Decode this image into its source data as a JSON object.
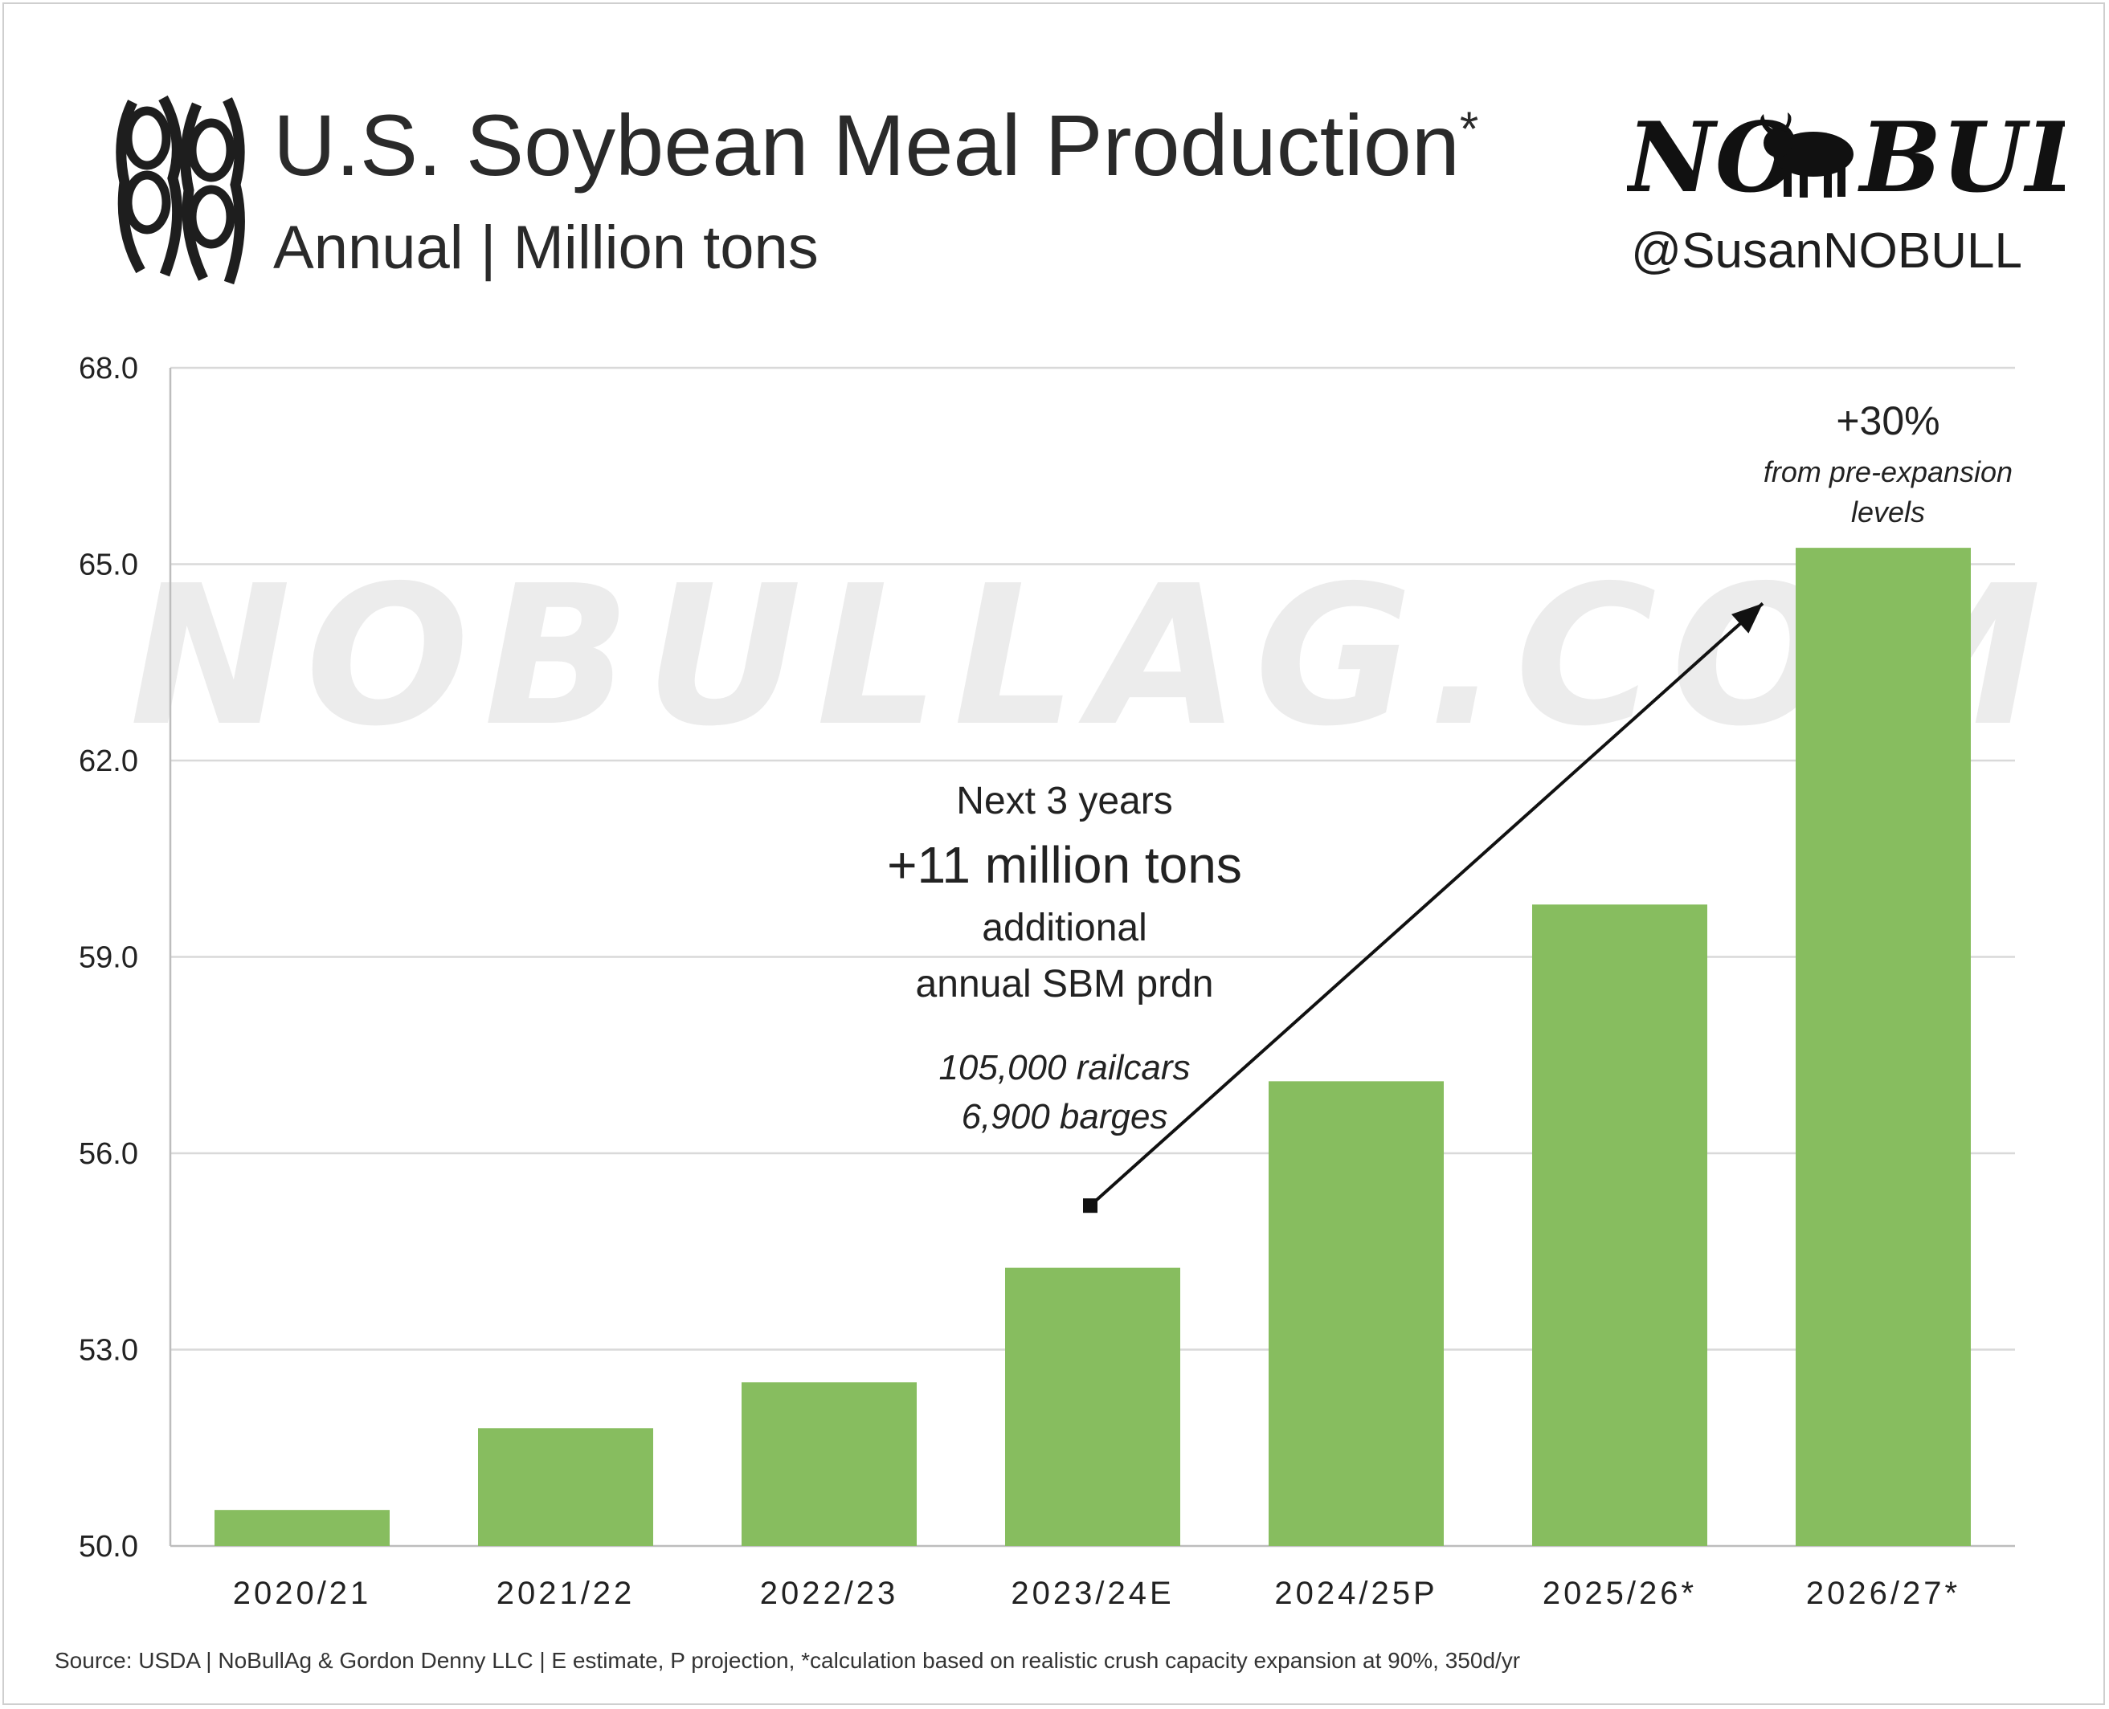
{
  "header": {
    "title": "U.S. Soybean Meal Production",
    "title_mark": "*",
    "subtitle": "Annual | Million tons",
    "brand_logo_text": "NO BULL",
    "brand_handle": "@SusanNOBULL"
  },
  "watermark": "NOBULLAG.COM",
  "annotations": {
    "center_line1": "Next 3 years",
    "center_line2": "+11 million tons",
    "center_line3": "additional",
    "center_line4": "annual SBM prdn",
    "center_italic1": "105,000 railcars",
    "center_italic2": "6,900 barges",
    "top_pct": "+30%",
    "top_note1": "from pre-expansion",
    "top_note2": "levels"
  },
  "source": "Source: USDA | NoBullAg & Gordon Denny LLC | E estimate, P projection, *calculation based on realistic crush capacity expansion at 90%, 350d/yr",
  "colors": {
    "bar": "#87bd5f",
    "grid": "#d9d9d9",
    "text": "#222222"
  },
  "chart_data": {
    "type": "bar",
    "categories": [
      "2020/21",
      "2021/22",
      "2022/23",
      "2023/24E",
      "2024/25P",
      "2025/26*",
      "2026/27*"
    ],
    "values": [
      50.55,
      51.8,
      52.5,
      54.25,
      57.1,
      59.8,
      65.25
    ],
    "ylim": [
      50.0,
      68.0
    ],
    "yticks": [
      50.0,
      53.0,
      56.0,
      59.0,
      62.0,
      65.0,
      68.0
    ],
    "ytick_labels": [
      "50.0",
      "53.0",
      "56.0",
      "59.0",
      "62.0",
      "65.0",
      "68.0"
    ],
    "grid": true,
    "arrow": {
      "from": [
        "2023/24E",
        55.2
      ],
      "to": [
        "2026/27*",
        64.4
      ]
    }
  }
}
